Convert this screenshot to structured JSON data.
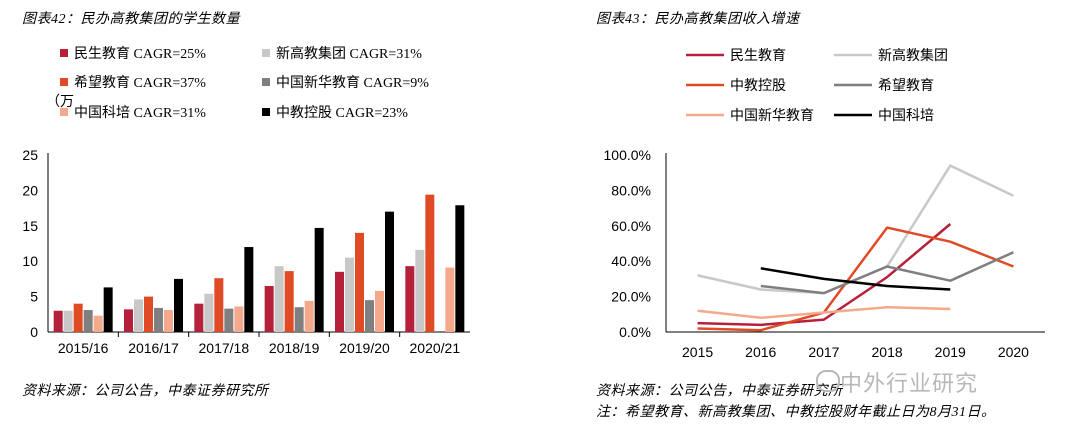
{
  "left": {
    "title": "图表42：民办高教集团的学生数量",
    "source": "资料来源：公司公告，中泰证券研究所"
  },
  "right": {
    "title": "图表43：民办高教集团收入增速",
    "source": "资料来源：公司公告，中泰证券研究所",
    "note": "注：希望教育、新高教集团、中教控股财年截止日为8月31日。"
  },
  "watermark": "中外行业研究",
  "chart_data": [
    {
      "type": "bar",
      "ylabel": "（万",
      "ylim": [
        0,
        25
      ],
      "yticks": [
        0,
        5,
        10,
        15,
        20,
        25
      ],
      "categories": [
        "2015/16",
        "2016/17",
        "2017/18",
        "2018/19",
        "2019/20",
        "2020/21"
      ],
      "legend_position": "top",
      "series": [
        {
          "name": "民生教育 CAGR=25%",
          "color": "#b5203a",
          "values": [
            3.0,
            3.2,
            4.0,
            6.5,
            8.5,
            9.3
          ]
        },
        {
          "name": "新高教集团 CAGR=31%",
          "color": "#c8c8c8",
          "values": [
            3.0,
            4.6,
            5.4,
            9.3,
            10.5,
            11.6
          ]
        },
        {
          "name": "希望教育 CAGR=37%",
          "color": "#e04a24",
          "values": [
            4.0,
            5.0,
            7.6,
            8.6,
            14.0,
            19.4
          ]
        },
        {
          "name": "中国新华教育 CAGR=9%",
          "color": "#7f7f7f",
          "values": [
            3.1,
            3.4,
            3.3,
            3.5,
            4.5,
            null
          ]
        },
        {
          "name": "中国科培 CAGR=31%",
          "color": "#f4a98d",
          "values": [
            2.3,
            3.1,
            3.6,
            4.4,
            5.8,
            9.1
          ]
        },
        {
          "name": "中教控股 CAGR=23%",
          "color": "#000000",
          "values": [
            6.3,
            7.5,
            12.0,
            14.7,
            17.0,
            17.9
          ]
        }
      ]
    },
    {
      "type": "line",
      "ylim": [
        0,
        100
      ],
      "yticks": [
        "0.0%",
        "20.0%",
        "40.0%",
        "60.0%",
        "80.0%",
        "100.0%"
      ],
      "categories": [
        "2015",
        "2016",
        "2017",
        "2018",
        "2019",
        "2020"
      ],
      "legend_position": "top",
      "series": [
        {
          "name": "民生教育",
          "color": "#b5203a",
          "values": [
            5,
            4,
            7,
            31,
            61,
            null
          ]
        },
        {
          "name": "新高教集团",
          "color": "#c8c8c8",
          "values": [
            32,
            24,
            22,
            37,
            94,
            77
          ]
        },
        {
          "name": "中教控股",
          "color": "#e04a24",
          "values": [
            2,
            1,
            11,
            59,
            51,
            37
          ]
        },
        {
          "name": "希望教育",
          "color": "#7f7f7f",
          "values": [
            null,
            26,
            22,
            37,
            29,
            45
          ]
        },
        {
          "name": "中国新华教育",
          "color": "#f4a98d",
          "values": [
            12,
            8,
            11,
            14,
            13,
            null
          ]
        },
        {
          "name": "中国科培",
          "color": "#000000",
          "values": [
            null,
            36,
            30,
            26,
            24,
            null
          ]
        }
      ]
    }
  ]
}
